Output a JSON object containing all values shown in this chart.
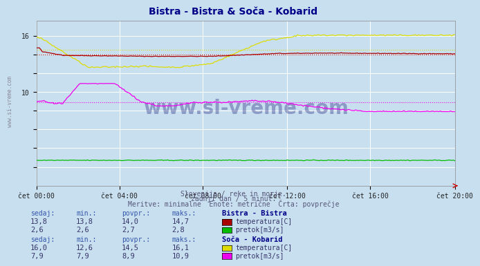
{
  "title": "Bistra - Bistra & Soča - Kobarid",
  "bg_color": "#c8dff0",
  "plot_bg_color": "#c8dff0",
  "grid_color": "#ffffff",
  "ylim": [
    0,
    17.6
  ],
  "yticks": [
    2,
    4,
    6,
    8,
    10,
    12,
    14,
    16
  ],
  "ytick_labels": [
    "",
    "",
    "",
    "",
    "10",
    "",
    "",
    "16"
  ],
  "x_labels": [
    "čet 00:00",
    "čet 04:00",
    "čet 08:00",
    "čet 12:00",
    "čet 16:00",
    "čet 20:00"
  ],
  "n_points": 288,
  "subtitle1": "Slovenija / reke in morje.",
  "subtitle2": "zadnji dan / 5 minut.",
  "subtitle3": "Meritve: minimalne  Enote: metrične  Črta: povprečje",
  "bistra_temp_color": "#aa0000",
  "bistra_pretok_color": "#00bb00",
  "soca_temp_color": "#dddd00",
  "soca_pretok_color": "#ee00ee",
  "bistra_temp_avg": 14.0,
  "bistra_temp_min": 13.8,
  "bistra_temp_max": 14.7,
  "bistra_temp_sedaj": 13.8,
  "bistra_pretok_avg": 2.7,
  "bistra_pretok_min": 2.6,
  "bistra_pretok_max": 2.8,
  "bistra_pretok_sedaj": 2.6,
  "soca_temp_avg": 14.5,
  "soca_temp_min": 12.6,
  "soca_temp_max": 16.1,
  "soca_temp_sedaj": 16.0,
  "soca_pretok_avg": 8.9,
  "soca_pretok_min": 7.9,
  "soca_pretok_max": 10.9,
  "soca_pretok_sedaj": 7.9,
  "watermark": "www.si-vreme.com",
  "left_label": "www.si-vreme.com",
  "text_color": "#3355aa",
  "title_color": "#000088",
  "subtitle_color": "#555577",
  "value_color": "#333366"
}
